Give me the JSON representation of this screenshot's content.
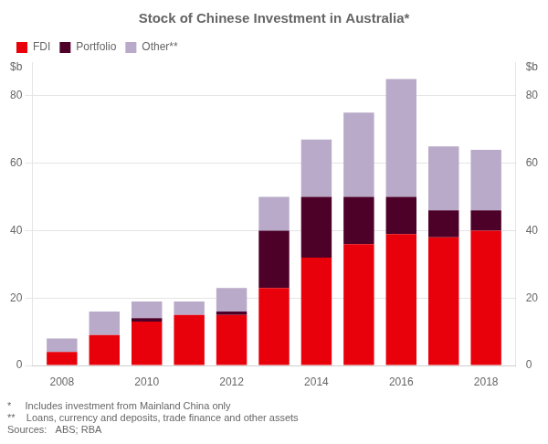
{
  "chart_data": {
    "type": "bar",
    "stacked": true,
    "title": "Stock of Chinese Investment in Australia*",
    "ylabel": "$b",
    "y2label": "$b",
    "x": [
      2008,
      2009,
      2010,
      2011,
      2012,
      2013,
      2014,
      2015,
      2016,
      2017,
      2018
    ],
    "series": [
      {
        "name": "FDI",
        "color": "#e8000a",
        "values": [
          4,
          9,
          13,
          15,
          15,
          23,
          32,
          36,
          39,
          38,
          40
        ]
      },
      {
        "name": "Portfolio",
        "color": "#4d0028",
        "values": [
          0,
          0,
          1,
          0,
          1,
          17,
          18,
          14,
          11,
          8,
          6
        ]
      },
      {
        "name": "Other**",
        "color": "#b8aac8",
        "values": [
          4,
          7,
          5,
          4,
          7,
          10,
          17,
          25,
          35,
          19,
          18
        ]
      }
    ],
    "xlim": [
      2007.3,
      2018.7
    ],
    "xticks": [
      2008,
      2010,
      2012,
      2014,
      2016,
      2018
    ],
    "ylim": [
      0,
      90
    ],
    "yticks": [
      0,
      20,
      40,
      60,
      80
    ],
    "y2lim": [
      0,
      90
    ],
    "y2ticks": [
      0,
      20,
      40,
      60,
      80
    ],
    "grid": "y",
    "legend": "upper left",
    "annotations": [
      "*     Includes investment from Mainland China only",
      "**    Loans, currency and deposits, trade finance and other assets",
      "Sources:   ABS; RBA"
    ]
  }
}
